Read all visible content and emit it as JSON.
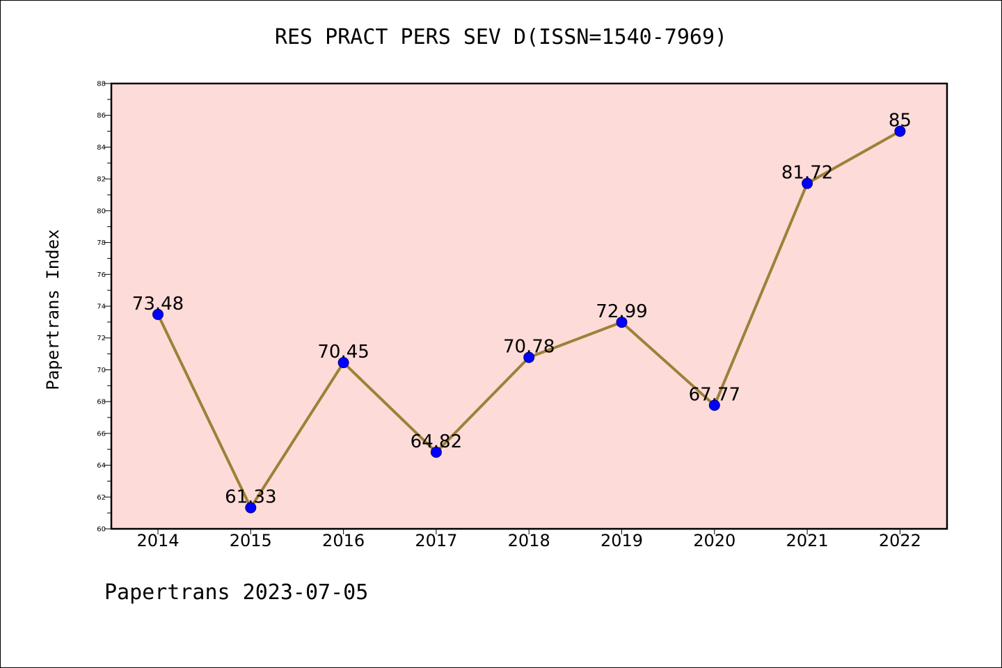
{
  "chart_data": {
    "type": "line",
    "title": "RES PRACT PERS SEV D(ISSN=1540-7969)",
    "xlabel": "",
    "ylabel": "Papertrans Index",
    "categories": [
      "2014",
      "2015",
      "2016",
      "2017",
      "2018",
      "2019",
      "2020",
      "2021",
      "2022"
    ],
    "series": [
      {
        "values": [
          73.48,
          61.33,
          70.45,
          64.82,
          70.78,
          72.99,
          67.77,
          81.72,
          85
        ]
      }
    ],
    "data_labels": [
      "73.48",
      "61.33",
      "70.45",
      "64.82",
      "70.78",
      "72.99",
      "67.77",
      "81.72",
      "85"
    ],
    "ylim": [
      60,
      88
    ],
    "yticks": [
      60,
      62,
      64,
      66,
      68,
      70,
      72,
      74,
      76,
      78,
      80,
      82,
      84,
      86,
      88
    ],
    "grid": false,
    "colors": {
      "plot_background": "#fddbd8",
      "line": "#9c8138",
      "marker": "#0000ff"
    }
  },
  "footer": "Papertrans 2023-07-05"
}
